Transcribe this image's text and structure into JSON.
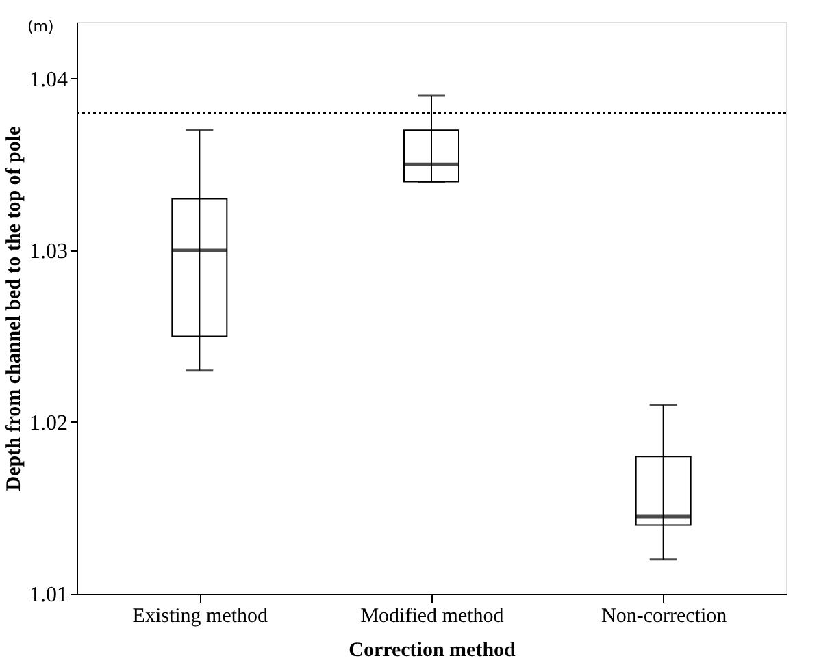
{
  "chart_data": {
    "type": "box",
    "xlabel": "Correction method",
    "ylabel": "Depth from channel bed to the top of pole",
    "categories": [
      "Existing method",
      "Modified method",
      "Non-correction"
    ],
    "boxes": [
      {
        "low": 1.023,
        "q1": 1.025,
        "median": 1.03,
        "q3": 1.033,
        "high": 1.037
      },
      {
        "low": 1.034,
        "q1": 1.034,
        "median": 1.035,
        "q3": 1.037,
        "high": 1.039
      },
      {
        "low": 1.012,
        "q1": 1.014,
        "median": 1.0145,
        "q3": 1.018,
        "high": 1.021
      }
    ],
    "ylim": [
      1.01,
      1.0433
    ],
    "yticks": [
      1.01,
      1.02,
      1.03,
      1.04
    ],
    "ref_lines": [
      {
        "axis": "y",
        "value": 1.038,
        "label": null,
        "color": "#000000",
        "line_style": "dotted"
      }
    ],
    "annotations": [
      "(m)"
    ],
    "grid": false
  }
}
